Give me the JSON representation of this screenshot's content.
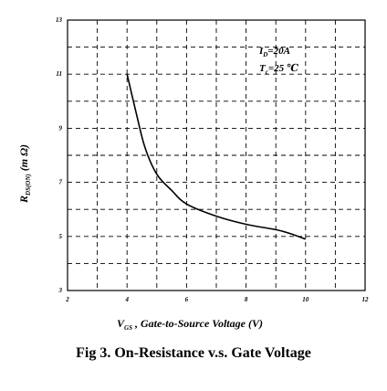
{
  "chart_data": {
    "type": "line",
    "title": "",
    "xlabel": {
      "main": "V",
      "sub": "GS",
      "rest": ", Gate-to-Source Voltage (V)"
    },
    "ylabel": {
      "main": "R",
      "sub": "DS(ON)",
      "rest": "(m Ω)"
    },
    "xlim": [
      2,
      12
    ],
    "ylim": [
      3,
      13
    ],
    "x_ticks": [
      2,
      4,
      6,
      8,
      10,
      12
    ],
    "y_ticks": [
      3,
      5,
      7,
      9,
      11,
      13
    ],
    "x_grid": [
      3,
      4,
      5,
      6,
      7,
      8,
      9,
      10,
      11
    ],
    "y_grid": [
      4,
      5,
      6,
      7,
      8,
      9,
      10,
      11,
      12
    ],
    "grid": true,
    "series": [
      {
        "x": [
          4.0,
          4.3,
          4.6,
          5.0,
          5.5,
          6.0,
          7.0,
          8.0,
          9.0,
          9.5,
          10.0
        ],
        "y": [
          11.0,
          9.6,
          8.3,
          7.3,
          6.7,
          6.2,
          5.75,
          5.45,
          5.25,
          5.1,
          4.9
        ]
      }
    ],
    "annotations": {
      "line1": {
        "main": "I",
        "sub": "D",
        "rest": "=20A"
      },
      "line2": {
        "main": "T",
        "sub": "c",
        "rest": "=25 ℃"
      }
    }
  },
  "caption": "Fig 3. On-Resistance v.s. Gate Voltage"
}
